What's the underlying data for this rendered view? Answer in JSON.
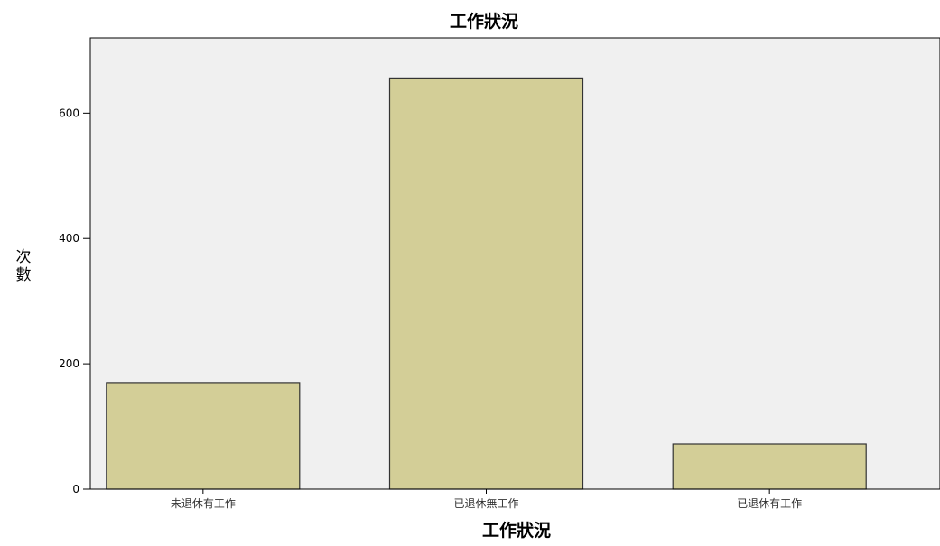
{
  "chart_data": {
    "type": "bar",
    "title": "工作狀況",
    "xlabel": "工作狀況",
    "ylabel": "次數",
    "categories": [
      "未退休有工作",
      "已退休無工作",
      "已退休有工作"
    ],
    "values": [
      170,
      656,
      72
    ],
    "ylim": [
      0,
      720
    ],
    "yticks": [
      0,
      200,
      400,
      600
    ],
    "grid": false,
    "legend": "none",
    "colors": {
      "plot_background": "#f0f0f0",
      "bar_fill": "#d3ce97",
      "bar_stroke": "#333333",
      "axis": "#000000"
    }
  }
}
